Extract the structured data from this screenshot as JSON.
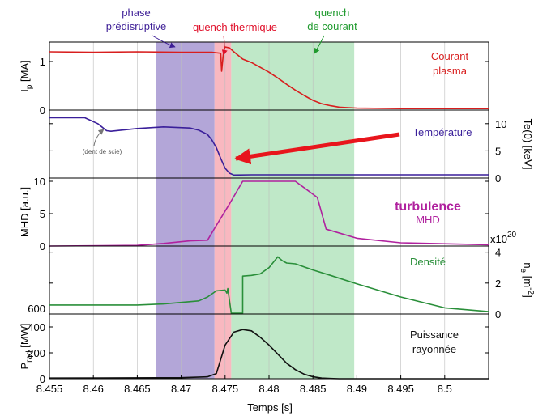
{
  "chart_data": {
    "type": "line",
    "xlabel": "Temps [s]",
    "x_ticks": [
      8.455,
      8.46,
      8.465,
      8.47,
      8.475,
      8.48,
      8.485,
      8.49,
      8.495,
      8.5
    ],
    "x_tick_labels": [
      "8.455",
      "8.46",
      "8.465",
      "8.47",
      "8.475",
      "8.48",
      "8.485",
      "8.49",
      "8.495",
      "8.5"
    ],
    "xlim": [
      8.455,
      8.505
    ],
    "regions": [
      {
        "label": "phase\nprédisruptive",
        "color": "#b3a6d8",
        "text_color": "#3d1e96",
        "x0": 8.4671,
        "x1": 8.4738
      },
      {
        "label": "quench thermique",
        "color": "#f9b8c0",
        "text_color": "#e0102a",
        "x0": 8.4738,
        "x1": 8.4757
      },
      {
        "label": "quench\nde courant",
        "color": "#bfe8c8",
        "text_color": "#1f9a2e",
        "x0": 8.4757,
        "x1": 8.4897
      }
    ],
    "panels": [
      {
        "id": "ip",
        "ylabel": "I_p [MA]",
        "ylabel_main": "I",
        "ylabel_sub": "p",
        "ylabel_rest": " [MA]",
        "ylabel_side": "left",
        "ylim": [
          0,
          1.4
        ],
        "ticks": [
          0,
          1
        ],
        "tick_labels": [
          "0",
          "1"
        ],
        "color": "#d81e1e",
        "label": "Courant\nplasma",
        "series": {
          "name": "Courant plasma",
          "x": [
            8.455,
            8.46,
            8.465,
            8.47,
            8.4735,
            8.4745,
            8.4746,
            8.4748,
            8.4749,
            8.475,
            8.4755,
            8.476,
            8.477,
            8.478,
            8.479,
            8.48,
            8.481,
            8.482,
            8.483,
            8.484,
            8.485,
            8.486,
            8.487,
            8.488,
            8.489,
            8.49,
            8.495,
            8.505
          ],
          "y": [
            1.2,
            1.19,
            1.2,
            1.19,
            1.19,
            1.17,
            0.8,
            1.15,
            1.25,
            1.3,
            1.28,
            1.2,
            1.05,
            0.98,
            0.88,
            0.78,
            0.66,
            0.53,
            0.41,
            0.3,
            0.2,
            0.13,
            0.09,
            0.06,
            0.05,
            0.04,
            0.03,
            0.03
          ]
        }
      },
      {
        "id": "te",
        "ylabel": "Te(0) [keV]",
        "ylabel_side": "right",
        "ylim": [
          0,
          12.5
        ],
        "ticks": [
          0,
          5,
          10
        ],
        "tick_labels": [
          "0",
          "5",
          "10"
        ],
        "color": "#3a1f9a",
        "label": "Température",
        "annotation": "(dent de scie)",
        "series": {
          "name": "Température",
          "x": [
            8.455,
            8.459,
            8.4605,
            8.4615,
            8.462,
            8.465,
            8.468,
            8.471,
            8.472,
            8.473,
            8.4735,
            8.474,
            8.4745,
            8.475,
            8.4755,
            8.476,
            8.478,
            8.485,
            8.49,
            8.505
          ],
          "y": [
            11.1,
            11.1,
            10.0,
            8.7,
            8.6,
            9.1,
            9.4,
            9.2,
            8.8,
            8.0,
            7.0,
            5.6,
            3.6,
            1.8,
            0.9,
            0.55,
            0.6,
            0.6,
            0.6,
            0.6
          ]
        }
      },
      {
        "id": "mhd",
        "ylabel": "MHD [a.u.]",
        "ylabel_side": "left",
        "ylim": [
          0,
          10.5
        ],
        "ticks": [
          0,
          5,
          10
        ],
        "tick_labels": [
          "0",
          "5",
          "10"
        ],
        "color": "#b0219e",
        "label": "turbulence",
        "label2": "MHD",
        "series": {
          "name": "turbulence MHD",
          "x": [
            8.455,
            8.465,
            8.468,
            8.471,
            8.473,
            8.4737,
            8.4755,
            8.477,
            8.483,
            8.4855,
            8.4865,
            8.49,
            8.495,
            8.505
          ],
          "y": [
            0,
            0.1,
            0.4,
            0.8,
            0.9,
            2.5,
            6.5,
            10,
            10,
            7.5,
            2.6,
            1.2,
            0.5,
            0.2
          ]
        }
      },
      {
        "id": "ne",
        "ylabel": "n_e [m^-2]",
        "ylabel_main": "n",
        "ylabel_sub": "e",
        "ylabel_rest": " [m",
        "ylabel_sup": "-2",
        "ylabel_end": "]",
        "ylabel_side": "right",
        "exponent_base": "x10",
        "exponent": "20",
        "ylim": [
          0,
          4.4
        ],
        "ticks": [
          0,
          2,
          4
        ],
        "tick_labels": [
          "0",
          "2",
          "4"
        ],
        "color": "#2a8f3a",
        "label": "Densité",
        "series": {
          "name": "Densité",
          "x": [
            8.455,
            8.465,
            8.468,
            8.47,
            8.472,
            8.473,
            8.474,
            8.475,
            8.4752,
            8.4753,
            8.4757,
            8.476,
            8.4765,
            8.477,
            8.477,
            8.478,
            8.479,
            8.48,
            8.4805,
            8.481,
            8.4815,
            8.482,
            8.483,
            8.485,
            8.487,
            8.49,
            8.495,
            8.5,
            8.505
          ],
          "y": [
            0.58,
            0.58,
            0.65,
            0.75,
            0.85,
            1.1,
            1.5,
            1.55,
            1.35,
            1.65,
            0.05,
            0.05,
            0.05,
            0.05,
            2.45,
            2.5,
            2.6,
            3.0,
            3.35,
            3.7,
            3.45,
            3.3,
            3.25,
            2.85,
            2.5,
            1.95,
            1.1,
            0.4,
            0.15
          ]
        }
      },
      {
        "id": "prad",
        "ylabel": "P_rad [MW]",
        "ylabel_main": "P",
        "ylabel_sub": "rad",
        "ylabel_rest": " [MW]",
        "ylabel_side": "left",
        "ylim": [
          0,
          500
        ],
        "ticks": [
          0,
          200,
          400
        ],
        "tick_labels": [
          "0",
          "200",
          "400"
        ],
        "color": "#111111",
        "label": "Puissance\nrayonnée",
        "series": {
          "name": "Puissance rayonnée",
          "x": [
            8.455,
            8.47,
            8.473,
            8.474,
            8.4745,
            8.475,
            8.476,
            8.477,
            8.478,
            8.479,
            8.48,
            8.481,
            8.482,
            8.483,
            8.484,
            8.485,
            8.486,
            8.487,
            8.488,
            8.49,
            8.505
          ],
          "y": [
            5,
            8,
            15,
            40,
            150,
            260,
            360,
            380,
            370,
            320,
            260,
            190,
            120,
            70,
            35,
            15,
            5,
            2,
            0,
            0,
            0
          ]
        }
      }
    ],
    "prad_axis_extra": {
      "label": "600",
      "value": 600
    }
  }
}
